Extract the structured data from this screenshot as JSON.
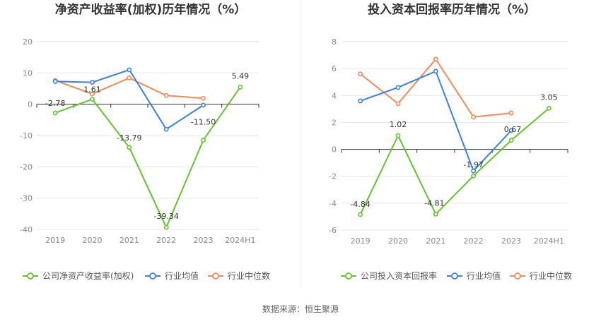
{
  "colors": {
    "company": "#66c132",
    "industry_avg": "#3d7fdc",
    "industry_median": "#ef8a5c",
    "grid": "#e6e6e6",
    "zero_axis": "#333333",
    "divider": "#e8e8e8"
  },
  "source_text": "数据来源：恒生聚源",
  "chart_data": [
    {
      "type": "line",
      "title": "净资产收益率(加权)历年情况（%）",
      "categories": [
        "2019",
        "2020",
        "2021",
        "2022",
        "2023",
        "2024H1"
      ],
      "ylim": [
        -40,
        20
      ],
      "yticks": [
        -40,
        -30,
        -20,
        -10,
        0,
        10,
        20
      ],
      "grid": true,
      "legend_position": "bottom",
      "series": [
        {
          "name": "公司净资产收益率(加权)",
          "color_key": "company",
          "values": [
            -2.78,
            1.61,
            -13.79,
            -39.34,
            -11.5,
            5.49
          ],
          "labels": [
            "-2.78",
            "1.61",
            "-13.79",
            "-39.34",
            "-11.50",
            "5.49"
          ]
        },
        {
          "name": "行业均值",
          "color_key": "industry_avg",
          "values": [
            7.3,
            7.0,
            11.0,
            -8.0,
            -0.3,
            null
          ]
        },
        {
          "name": "行业中位数",
          "color_key": "industry_median",
          "values": [
            7.6,
            3.3,
            8.4,
            2.8,
            1.9,
            null
          ]
        }
      ]
    },
    {
      "type": "line",
      "title": "投入资本回报率历年情况（%）",
      "categories": [
        "2019",
        "2020",
        "2021",
        "2022",
        "2023",
        "2024H1"
      ],
      "ylim": [
        -6,
        8
      ],
      "yticks": [
        -6,
        -4,
        -2,
        0,
        2,
        4,
        6,
        8
      ],
      "grid": true,
      "legend_position": "bottom",
      "series": [
        {
          "name": "公司投入资本回报率",
          "color_key": "company",
          "values": [
            -4.84,
            1.02,
            -4.81,
            -1.97,
            0.67,
            3.05
          ],
          "labels": [
            "-4.84",
            "1.02",
            "-4.81",
            "-1.97",
            "0.67",
            "3.05"
          ]
        },
        {
          "name": "行业均值",
          "color_key": "industry_avg",
          "values": [
            3.6,
            4.6,
            5.8,
            -1.6,
            1.4,
            null
          ]
        },
        {
          "name": "行业中位数",
          "color_key": "industry_median",
          "values": [
            5.6,
            3.4,
            6.7,
            2.4,
            2.7,
            null
          ]
        }
      ]
    }
  ]
}
